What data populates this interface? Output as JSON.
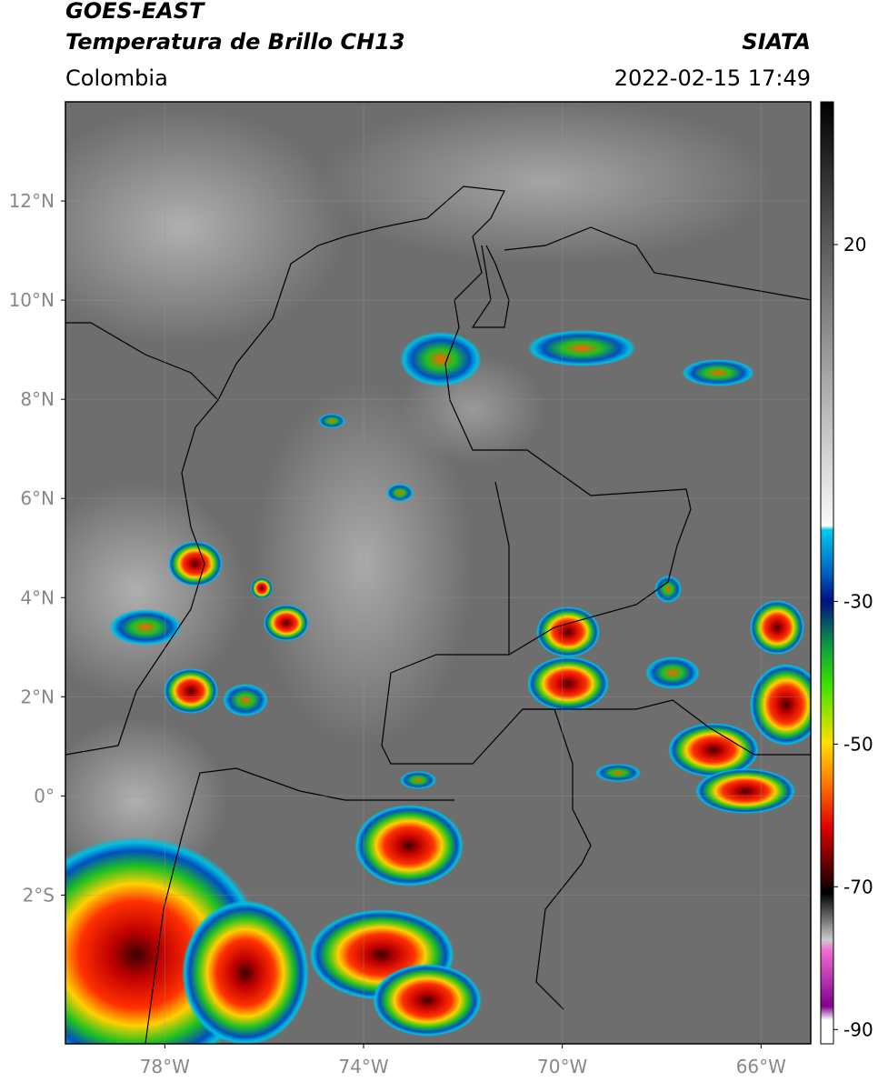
{
  "header": {
    "title_line1": "GOES-EAST",
    "title_line2": "Temperatura de Brillo CH13",
    "source": "SIATA",
    "region": "Colombia",
    "datetime": "2022-02-15 17:49"
  },
  "map": {
    "lon_ticks": [
      {
        "value": -78,
        "label": "78°W"
      },
      {
        "value": -74,
        "label": "74°W"
      },
      {
        "value": -70,
        "label": "70°W"
      },
      {
        "value": -66,
        "label": "66°W"
      }
    ],
    "lat_ticks": [
      {
        "value": 12,
        "label": "12°N"
      },
      {
        "value": 10,
        "label": "10°N"
      },
      {
        "value": 8,
        "label": "8°N"
      },
      {
        "value": 6,
        "label": "6°N"
      },
      {
        "value": 4,
        "label": "4°N"
      },
      {
        "value": 2,
        "label": "2°N"
      },
      {
        "value": 0,
        "label": "0°"
      },
      {
        "value": -2,
        "label": "2°S"
      }
    ]
  },
  "colorbar": {
    "ticks": [
      20,
      -30,
      -50,
      -70,
      -90
    ]
  }
}
